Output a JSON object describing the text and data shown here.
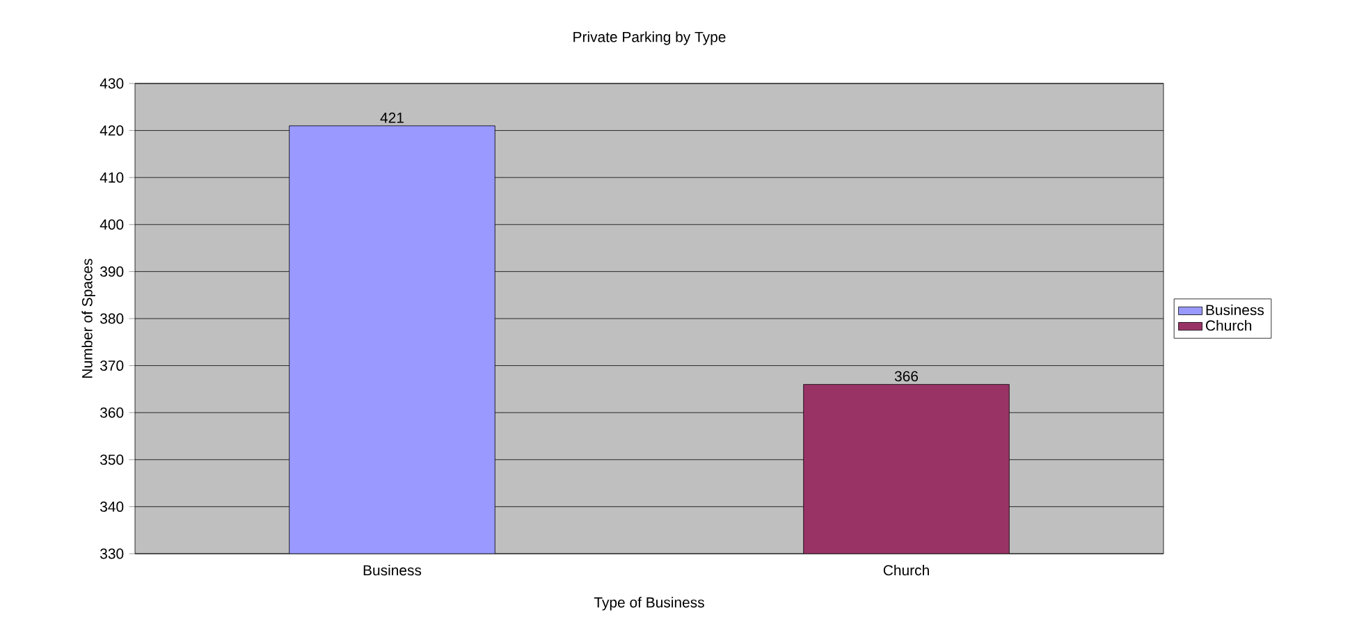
{
  "chart_data": {
    "type": "bar",
    "title": "Private Parking by Type",
    "xlabel": "Type of Business",
    "ylabel": "Number of Spaces",
    "categories": [
      "Business",
      "Church"
    ],
    "series": [
      {
        "name": "Business",
        "color": "#9999ff",
        "values": [
          421,
          null
        ]
      },
      {
        "name": "Church",
        "color": "#993366",
        "values": [
          null,
          366
        ]
      }
    ],
    "ylim": [
      330,
      430
    ],
    "yticks": [
      330,
      340,
      350,
      360,
      370,
      380,
      390,
      400,
      410,
      420,
      430
    ],
    "grid": "y",
    "legend": "right",
    "data_labels": true
  }
}
